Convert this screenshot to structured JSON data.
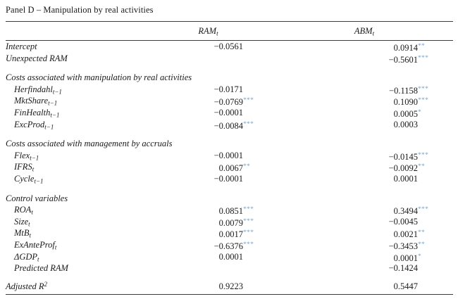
{
  "page": {
    "title": "Panel D – Manipulation by real activities"
  },
  "style": {
    "star_color": "#7ba7d0",
    "text_color": "#1a1a1a",
    "rule_color": "#3c3c3c"
  },
  "table": {
    "columns": [
      {
        "base": "RAM",
        "sub": "t"
      },
      {
        "base": "ABM",
        "sub": "t"
      }
    ],
    "rows": [
      {
        "type": "plain",
        "base": "Intercept",
        "sub": "",
        "sup": "",
        "ram": "−0.0561",
        "ram_stars": "",
        "abm": "0.0914",
        "abm_stars": "**"
      },
      {
        "type": "plain",
        "base": "Unexpected RAM",
        "sub": "",
        "sup": "",
        "ram": "",
        "ram_stars": "",
        "abm": "−0.5601",
        "abm_stars": "***"
      },
      {
        "type": "section",
        "base": "Costs associated with manipulation by real activities",
        "sub": "",
        "sup": ""
      },
      {
        "type": "var",
        "base": "Herfindahl",
        "sub": "t−1",
        "sup": "",
        "ram": "−0.0171",
        "ram_stars": "",
        "abm": "−0.1158",
        "abm_stars": "***"
      },
      {
        "type": "var",
        "base": "MktShare",
        "sub": "t−1",
        "sup": "",
        "ram": "−0.0769",
        "ram_stars": "***",
        "abm": "0.1090",
        "abm_stars": "***"
      },
      {
        "type": "var",
        "base": "FinHealth",
        "sub": "t−1",
        "sup": "",
        "ram": "−0.0001",
        "ram_stars": "",
        "abm": "0.0005",
        "abm_stars": "*"
      },
      {
        "type": "var",
        "base": "ExcProd",
        "sub": "t−1",
        "sup": "",
        "ram": "−0.0084",
        "ram_stars": "***",
        "abm": "0.0003",
        "abm_stars": ""
      },
      {
        "type": "section",
        "base": "Costs associated with management by accruals",
        "sub": "",
        "sup": ""
      },
      {
        "type": "var",
        "base": "Flex",
        "sub": "t−1",
        "sup": "",
        "ram": "−0.0001",
        "ram_stars": "",
        "abm": "−0.0145",
        "abm_stars": "***"
      },
      {
        "type": "var",
        "base": "IFRS",
        "sub": "t",
        "sup": "",
        "ram": "0.0067",
        "ram_stars": "**",
        "abm": "−0.0092",
        "abm_stars": "**"
      },
      {
        "type": "var",
        "base": "Cycle",
        "sub": "t−1",
        "sup": "",
        "ram": "−0.0001",
        "ram_stars": "",
        "abm": "0.0001",
        "abm_stars": ""
      },
      {
        "type": "section",
        "base": "Control variables",
        "sub": "",
        "sup": ""
      },
      {
        "type": "var",
        "base": "ROA",
        "sub": "t",
        "sup": "",
        "ram": "0.0851",
        "ram_stars": "***",
        "abm": "0.3494",
        "abm_stars": "***"
      },
      {
        "type": "var",
        "base": "Size",
        "sub": "t",
        "sup": "",
        "ram": "0.0079",
        "ram_stars": "***",
        "abm": "−0.0045",
        "abm_stars": ""
      },
      {
        "type": "var",
        "base": "MtB",
        "sub": "t",
        "sup": "",
        "ram": "0.0017",
        "ram_stars": "***",
        "abm": "0.0021",
        "abm_stars": "**"
      },
      {
        "type": "var",
        "base": "ExAnteProf",
        "sub": "t",
        "sup": "",
        "ram": "−0.6376",
        "ram_stars": "***",
        "abm": "−0.3453",
        "abm_stars": "**"
      },
      {
        "type": "var",
        "base": "ΔGDP",
        "sub": "t",
        "sup": "",
        "ram": "0.0001",
        "ram_stars": "",
        "abm": "0.0001",
        "abm_stars": "*"
      },
      {
        "type": "var",
        "base": "Predicted RAM",
        "sub": "",
        "sup": "",
        "ram": "",
        "ram_stars": "",
        "abm": "−0.1424",
        "abm_stars": ""
      },
      {
        "type": "summary",
        "base": "Adjusted R",
        "sub": "",
        "sup": "2",
        "ram": "0.9223",
        "ram_stars": "",
        "abm": "0.5447",
        "abm_stars": ""
      }
    ]
  }
}
